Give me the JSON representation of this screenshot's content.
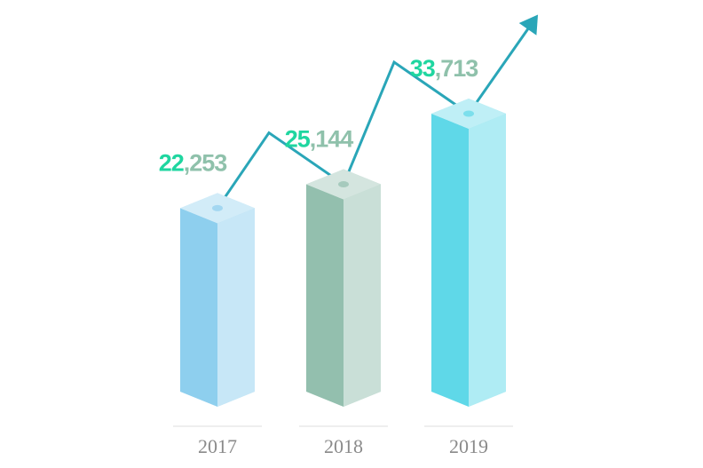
{
  "chart_data": {
    "type": "bar",
    "categories": [
      "2017",
      "2018",
      "2019"
    ],
    "values": [
      22253,
      25144,
      33713
    ],
    "value_labels": [
      "22,253",
      "25,144",
      "33,713"
    ],
    "colors": [
      "#8ecfee",
      "#93bfae",
      "#5fd8e8"
    ]
  }
}
